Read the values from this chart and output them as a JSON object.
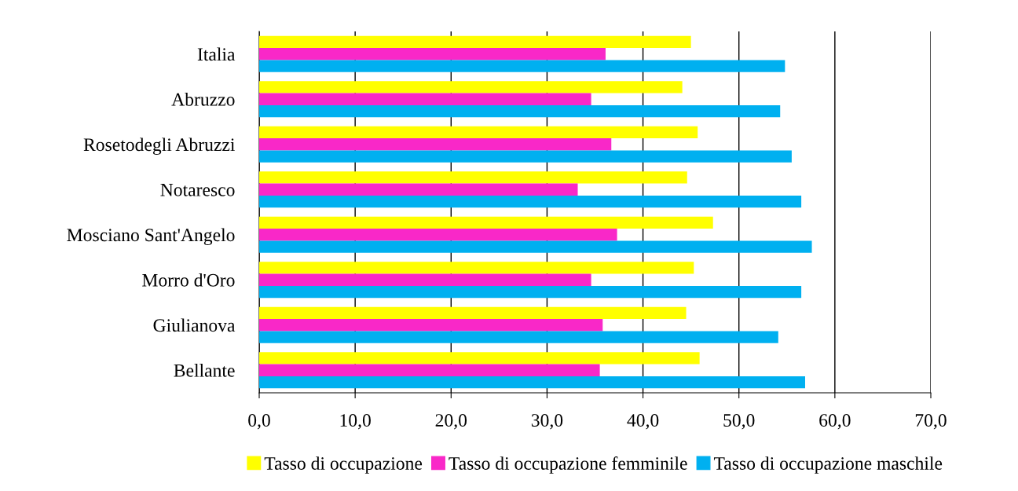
{
  "chart_data": {
    "type": "bar",
    "orientation": "horizontal",
    "categories": [
      "Italia",
      "Abruzzo",
      "Rosetodegli Abruzzi",
      "Notaresco",
      "Mosciano Sant'Angelo",
      "Morro d'Oro",
      "Giulianova",
      "Bellante"
    ],
    "series": [
      {
        "name": "Tasso di occupazione",
        "color": "#ffff00",
        "values": [
          45.0,
          44.1,
          45.7,
          44.6,
          47.3,
          45.3,
          44.5,
          45.9
        ]
      },
      {
        "name": "Tasso di occupazione femminile",
        "color": "#f928c8",
        "values": [
          36.1,
          34.6,
          36.7,
          33.2,
          37.3,
          34.6,
          35.8,
          35.5
        ]
      },
      {
        "name": "Tasso di occupazione maschile",
        "color": "#00b0f0",
        "values": [
          54.8,
          54.3,
          55.5,
          56.5,
          57.6,
          56.5,
          54.1,
          56.9
        ]
      }
    ],
    "xlim": [
      0,
      70
    ],
    "xticks": [
      {
        "value": 0,
        "label": "0,0"
      },
      {
        "value": 10,
        "label": "10,0"
      },
      {
        "value": 20,
        "label": "20,0"
      },
      {
        "value": 30,
        "label": "30,0"
      },
      {
        "value": 40,
        "label": "40,0"
      },
      {
        "value": 50,
        "label": "50,0"
      },
      {
        "value": 60,
        "label": "60,0"
      },
      {
        "value": 70,
        "label": "70,0"
      }
    ],
    "grid": "x",
    "legend": "bottom"
  }
}
